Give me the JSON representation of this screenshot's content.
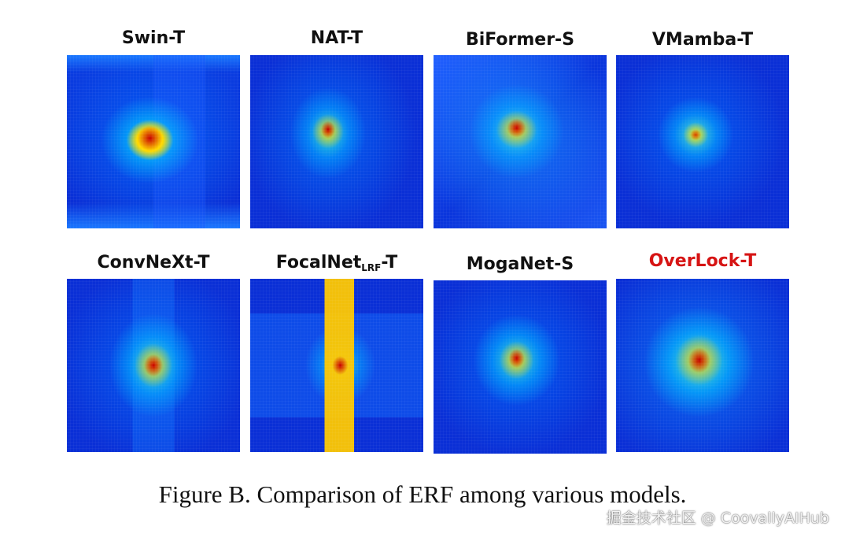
{
  "figure": {
    "panels": [
      {
        "title": "Swin-T",
        "highlight": false,
        "style": "swin"
      },
      {
        "title": "NAT-T",
        "highlight": false,
        "style": "nat"
      },
      {
        "title": "BiFormer-S",
        "highlight": false,
        "style": "biformer"
      },
      {
        "title": "VMamba-T",
        "highlight": false,
        "style": "vmamba"
      },
      {
        "title": "ConvNeXt-T",
        "highlight": false,
        "style": "convnext"
      },
      {
        "title_main": "FocalNet",
        "title_sub": "LRF",
        "title_suffix": "-T",
        "highlight": false,
        "style": "focalnet"
      },
      {
        "title": "MogaNet-S",
        "highlight": false,
        "style": "moganet"
      },
      {
        "title": "OverLock-T",
        "highlight": true,
        "style": "overlock"
      }
    ],
    "caption": "Figure B. Comparison of ERF among various models."
  },
  "watermark": "掘金技术社区 @ CoovallyAIHub",
  "colors": {
    "map_background": "#0a2fd6",
    "highlight_label": "#d61414"
  }
}
